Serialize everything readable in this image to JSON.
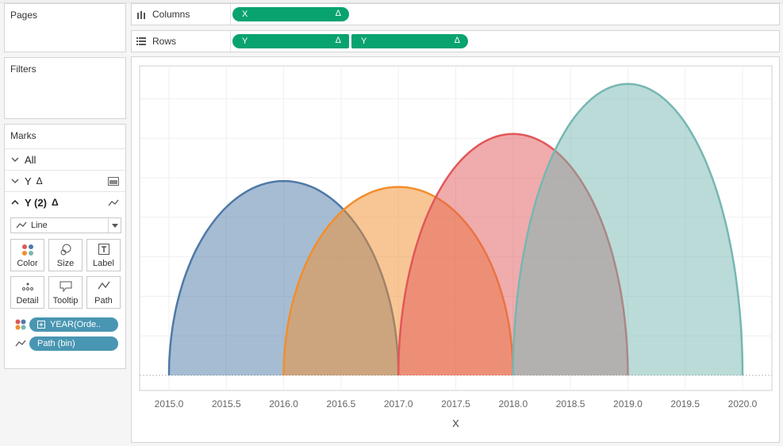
{
  "pages_panel": {
    "title": "Pages"
  },
  "filters_panel": {
    "title": "Filters"
  },
  "marks_panel": {
    "title": "Marks",
    "all_label": "All",
    "y_card_label": "Y",
    "y2_card_label": "Y (2)",
    "delta_symbol": "Δ",
    "mark_type": "Line",
    "buttons": {
      "color": "Color",
      "size": "Size",
      "label": "Label",
      "detail": "Detail",
      "tooltip": "Tooltip",
      "path": "Path"
    },
    "fields": [
      {
        "label": "YEAR(Orde..",
        "kind": "color"
      },
      {
        "label": "Path (bin)",
        "kind": "path"
      }
    ]
  },
  "columns_shelf": {
    "label": "Columns",
    "pills": [
      {
        "label": "X",
        "delta": "Δ"
      }
    ]
  },
  "rows_shelf": {
    "label": "Rows",
    "pills": [
      {
        "label": "Y",
        "delta": "Δ"
      },
      {
        "label": "Y",
        "delta": "Δ"
      }
    ]
  },
  "colors": {
    "pill_green": "#09a36f",
    "pill_blue": "#4996b2"
  },
  "chart_data": {
    "type": "area",
    "title": "",
    "xlabel": "X",
    "ylabel": "",
    "xlim": [
      2015.0,
      2020.0
    ],
    "ylim": [
      0,
      1
    ],
    "x_ticks": [
      "2015.0",
      "2015.5",
      "2016.0",
      "2016.5",
      "2017.0",
      "2017.5",
      "2018.0",
      "2018.5",
      "2019.0",
      "2019.5",
      "2020.0"
    ],
    "y_axis_labels_visible": false,
    "grid": true,
    "legend": "none",
    "series": [
      {
        "start": 2015.0,
        "end": 2017.0,
        "peak": 0.66,
        "stroke": "#4e79a7",
        "fill": "#4e79a7"
      },
      {
        "start": 2016.0,
        "end": 2018.0,
        "peak": 0.64,
        "stroke": "#f28e2b",
        "fill": "#f28e2b"
      },
      {
        "start": 2017.0,
        "end": 2019.0,
        "peak": 0.82,
        "stroke": "#e15759",
        "fill": "#e15759"
      },
      {
        "start": 2018.0,
        "end": 2020.0,
        "peak": 0.99,
        "stroke": "#76b7b2",
        "fill": "#76b7b2"
      }
    ]
  }
}
